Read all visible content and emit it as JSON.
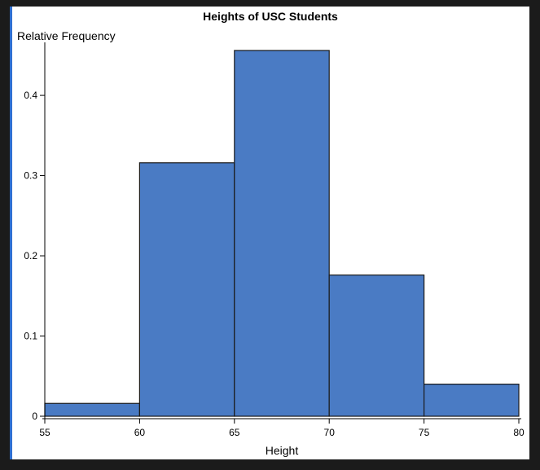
{
  "chart_data": {
    "type": "bar",
    "title": "Heights of USC Students",
    "xlabel": "Height",
    "ylabel": "Relative Frequency",
    "bin_edges": [
      55,
      60,
      65,
      70,
      75,
      80
    ],
    "values": [
      0.016,
      0.316,
      0.456,
      0.176,
      0.04
    ],
    "xlim": [
      55,
      80
    ],
    "ylim": [
      0,
      0.46
    ],
    "xticks": [
      "55",
      "60",
      "65",
      "70",
      "75",
      "80"
    ],
    "yticks": [
      "0",
      "0.1",
      "0.2",
      "0.3",
      "0.4"
    ],
    "ytick_values": [
      0,
      0.1,
      0.2,
      0.3,
      0.4
    ],
    "grid": false,
    "bar_color": "#4a7bc4",
    "edge_color": "#1a1a1a"
  }
}
